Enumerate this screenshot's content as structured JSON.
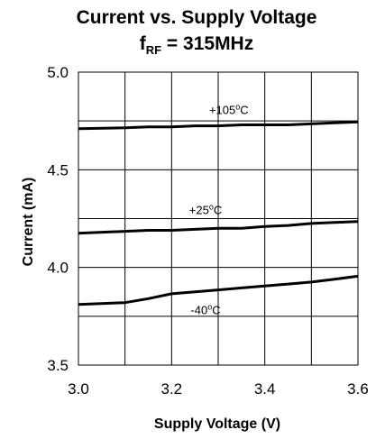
{
  "chart_data": {
    "type": "line",
    "title": "Current vs. Supply Voltage",
    "subtitle": {
      "prefix": "f",
      "subscript": "RF",
      "suffix": " = 315MHz"
    },
    "xlabel": "Supply Voltage (V)",
    "ylabel": "Current (mA)",
    "xlim": [
      3.0,
      3.6
    ],
    "ylim": [
      3.5,
      5.0
    ],
    "x_ticks": [
      3.0,
      3.1,
      3.2,
      3.3,
      3.4,
      3.5,
      3.6
    ],
    "x_tick_labels": [
      "3.0",
      "",
      "3.2",
      "",
      "3.4",
      "",
      "3.6"
    ],
    "y_ticks": [
      3.5,
      3.75,
      4.0,
      4.25,
      4.5,
      4.75,
      5.0
    ],
    "y_tick_labels": [
      "3.5",
      "",
      "4.0",
      "",
      "4.5",
      "",
      "5.0"
    ],
    "grid": true,
    "series": [
      {
        "label_value": "+105",
        "label_degree": "o",
        "label_unit": "C",
        "color": "#000000",
        "x": [
          3.0,
          3.1,
          3.15,
          3.2,
          3.25,
          3.3,
          3.35,
          3.4,
          3.45,
          3.5,
          3.55,
          3.6
        ],
        "values": [
          4.71,
          4.715,
          4.72,
          4.72,
          4.725,
          4.725,
          4.73,
          4.73,
          4.73,
          4.735,
          4.74,
          4.745
        ]
      },
      {
        "label_value": "+25",
        "label_degree": "o",
        "label_unit": "C",
        "color": "#000000",
        "x": [
          3.0,
          3.1,
          3.15,
          3.2,
          3.25,
          3.3,
          3.35,
          3.4,
          3.45,
          3.5,
          3.55,
          3.6
        ],
        "values": [
          4.175,
          4.185,
          4.19,
          4.19,
          4.195,
          4.2,
          4.2,
          4.21,
          4.215,
          4.225,
          4.23,
          4.235
        ]
      },
      {
        "label_value": "-40",
        "label_degree": "o",
        "label_unit": "C",
        "color": "#000000",
        "x": [
          3.0,
          3.1,
          3.15,
          3.2,
          3.25,
          3.3,
          3.35,
          3.4,
          3.45,
          3.5,
          3.55,
          3.6
        ],
        "values": [
          3.81,
          3.82,
          3.84,
          3.865,
          3.875,
          3.885,
          3.895,
          3.905,
          3.915,
          3.925,
          3.94,
          3.955
        ]
      }
    ]
  }
}
